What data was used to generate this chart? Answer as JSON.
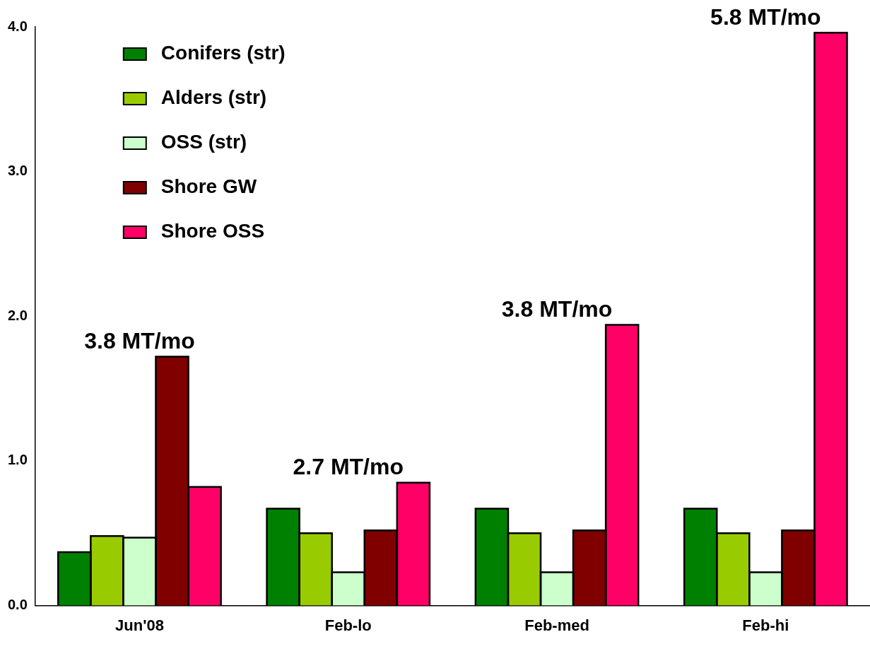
{
  "chart_data": {
    "type": "bar",
    "categories": [
      "Jun'08",
      "Feb-lo",
      "Feb-med",
      "Feb-hi"
    ],
    "series": [
      {
        "name": "Conifers (str)",
        "color": "#008000",
        "values": [
          0.37,
          0.67,
          0.67,
          0.67
        ]
      },
      {
        "name": "Alders (str)",
        "color": "#99cc00",
        "values": [
          0.48,
          0.5,
          0.5,
          0.5
        ]
      },
      {
        "name": "OSS (str)",
        "color": "#ccffcc",
        "values": [
          0.47,
          0.23,
          0.23,
          0.23
        ]
      },
      {
        "name": "Shore GW",
        "color": "#800000",
        "values": [
          1.72,
          0.52,
          0.52,
          0.52
        ]
      },
      {
        "name": "Shore OSS",
        "color": "#ff0066",
        "values": [
          0.82,
          0.85,
          1.94,
          3.96
        ]
      }
    ],
    "ylim": [
      0,
      4
    ],
    "yticks": [
      {
        "value": 0,
        "label": "0.0"
      },
      {
        "value": 1,
        "label": "1.0"
      },
      {
        "value": 2,
        "label": "2.0"
      },
      {
        "value": 3,
        "label": "3.0"
      },
      {
        "value": 4,
        "label": "4.0"
      }
    ],
    "grid": false,
    "legend": "top left",
    "annotations": [
      "3.8 MT/mo",
      "2.7 MT/mo",
      "3.8 MT/mo",
      "5.8 MT/mo"
    ]
  }
}
